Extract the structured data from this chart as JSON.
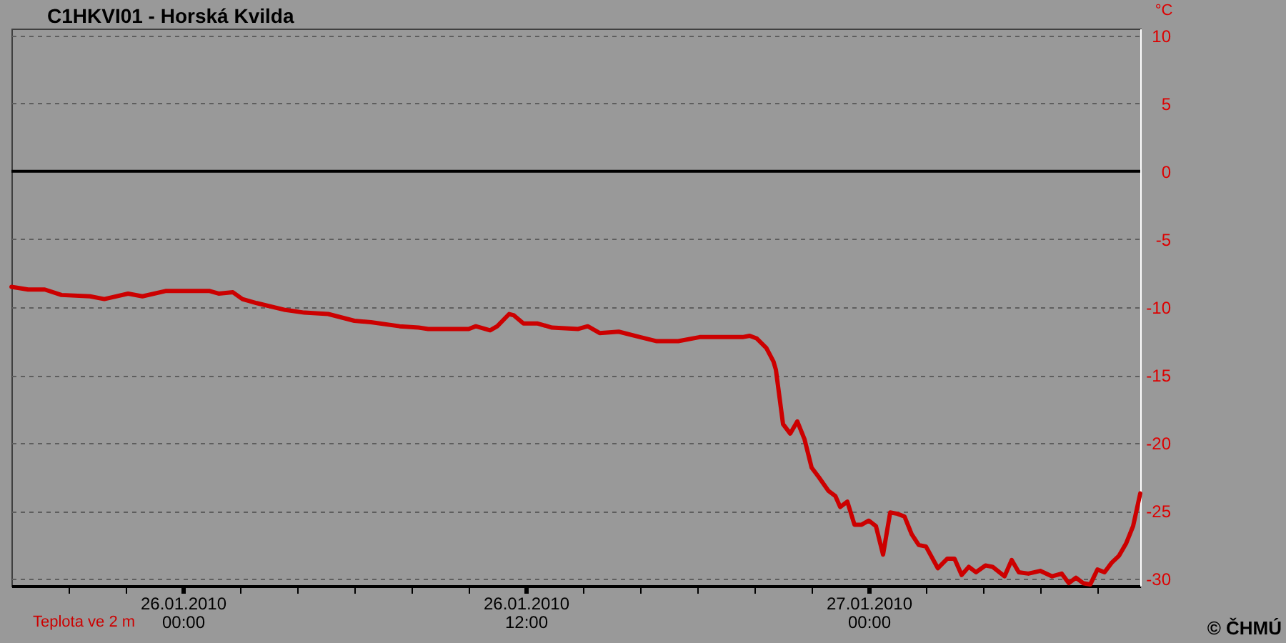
{
  "chart_data": {
    "type": "line",
    "title": "C1HKVI01 - Horská Kvilda",
    "ylabel": "°C",
    "x": [
      "2010-01-25T18:00",
      "2010-01-25T18:35",
      "2010-01-25T19:10",
      "2010-01-25T19:45",
      "2010-01-25T20:45",
      "2010-01-25T21:15",
      "2010-01-25T22:05",
      "2010-01-25T22:35",
      "2010-01-25T23:25",
      "2010-01-26T00:55",
      "2010-01-26T01:15",
      "2010-01-26T01:45",
      "2010-01-26T02:05",
      "2010-01-26T02:35",
      "2010-01-26T03:35",
      "2010-01-26T04:15",
      "2010-01-26T05:05",
      "2010-01-26T06:00",
      "2010-01-26T06:35",
      "2010-01-26T07:35",
      "2010-01-26T08:15",
      "2010-01-26T08:35",
      "2010-01-26T09:25",
      "2010-01-26T10:00",
      "2010-01-26T10:15",
      "2010-01-26T10:45",
      "2010-01-26T11:00",
      "2010-01-26T11:25",
      "2010-01-26T11:35",
      "2010-01-26T11:55",
      "2010-01-26T12:25",
      "2010-01-26T12:55",
      "2010-01-26T13:50",
      "2010-01-26T14:10",
      "2010-01-26T14:35",
      "2010-01-26T15:15",
      "2010-01-26T16:00",
      "2010-01-26T16:35",
      "2010-01-26T17:20",
      "2010-01-26T18:05",
      "2010-01-26T19:35",
      "2010-01-26T19:50",
      "2010-01-26T20:05",
      "2010-01-26T20:25",
      "2010-01-26T20:40",
      "2010-01-26T20:45",
      "2010-01-26T21:00",
      "2010-01-26T21:15",
      "2010-01-26T21:30",
      "2010-01-26T21:45",
      "2010-01-26T22:00",
      "2010-01-26T22:15",
      "2010-01-26T22:35",
      "2010-01-26T22:50",
      "2010-01-26T23:00",
      "2010-01-26T23:15",
      "2010-01-26T23:30",
      "2010-01-26T23:45",
      "2010-01-27T00:00",
      "2010-01-27T00:15",
      "2010-01-27T00:30",
      "2010-01-27T00:45",
      "2010-01-27T01:00",
      "2010-01-27T01:15",
      "2010-01-27T01:30",
      "2010-01-27T01:45",
      "2010-01-27T02:00",
      "2010-01-27T02:25",
      "2010-01-27T02:45",
      "2010-01-27T03:00",
      "2010-01-27T03:15",
      "2010-01-27T03:30",
      "2010-01-27T03:45",
      "2010-01-27T04:05",
      "2010-01-27T04:20",
      "2010-01-27T04:45",
      "2010-01-27T05:00",
      "2010-01-27T05:15",
      "2010-01-27T05:35",
      "2010-01-27T06:00",
      "2010-01-27T06:25",
      "2010-01-27T06:45",
      "2010-01-27T07:00",
      "2010-01-27T07:15",
      "2010-01-27T07:30",
      "2010-01-27T07:45",
      "2010-01-27T08:00",
      "2010-01-27T08:15",
      "2010-01-27T08:30",
      "2010-01-27T08:45",
      "2010-01-27T09:00",
      "2010-01-27T09:15",
      "2010-01-27T09:30"
    ],
    "series": [
      {
        "name": "Teplota ve 2 m",
        "color": "#cc0000",
        "values": [
          -8.5,
          -8.7,
          -8.7,
          -9.1,
          -9.2,
          -9.4,
          -9.0,
          -9.2,
          -8.8,
          -8.8,
          -9.0,
          -8.9,
          -9.4,
          -9.7,
          -10.2,
          -10.4,
          -10.5,
          -11.0,
          -11.1,
          -11.4,
          -11.5,
          -11.6,
          -11.6,
          -11.6,
          -11.4,
          -11.7,
          -11.4,
          -10.5,
          -10.6,
          -11.2,
          -11.2,
          -11.5,
          -11.6,
          -11.4,
          -11.9,
          -11.8,
          -12.2,
          -12.5,
          -12.5,
          -12.2,
          -12.2,
          -12.1,
          -12.3,
          -13.0,
          -14.0,
          -14.6,
          -18.6,
          -19.3,
          -18.4,
          -19.7,
          -21.8,
          -22.5,
          -23.5,
          -23.9,
          -24.7,
          -24.3,
          -26.0,
          -26.0,
          -25.7,
          -26.1,
          -28.2,
          -25.1,
          -25.2,
          -25.4,
          -26.7,
          -27.5,
          -27.6,
          -29.2,
          -28.5,
          -28.5,
          -29.7,
          -29.1,
          -29.5,
          -29.0,
          -29.1,
          -29.8,
          -28.6,
          -29.5,
          -29.6,
          -29.4,
          -29.8,
          -29.6,
          -30.3,
          -29.9,
          -30.3,
          -30.4,
          -29.3,
          -29.5,
          -28.8,
          -28.3,
          -27.4,
          -26.1,
          -23.7
        ]
      }
    ],
    "xlim": [
      "2010-01-25T18:00",
      "2010-01-27T09:30"
    ],
    "xticks": [
      {
        "value": "2010-01-25T20:00",
        "label": null
      },
      {
        "value": "2010-01-25T22:00",
        "label": null
      },
      {
        "value": "2010-01-26T00:00",
        "label": "26.01.2010\n00:00"
      },
      {
        "value": "2010-01-26T02:00",
        "label": null
      },
      {
        "value": "2010-01-26T04:00",
        "label": null
      },
      {
        "value": "2010-01-26T06:00",
        "label": null
      },
      {
        "value": "2010-01-26T08:00",
        "label": null
      },
      {
        "value": "2010-01-26T10:00",
        "label": null
      },
      {
        "value": "2010-01-26T12:00",
        "label": "26.01.2010\n12:00"
      },
      {
        "value": "2010-01-26T14:00",
        "label": null
      },
      {
        "value": "2010-01-26T16:00",
        "label": null
      },
      {
        "value": "2010-01-26T18:00",
        "label": null
      },
      {
        "value": "2010-01-26T20:00",
        "label": null
      },
      {
        "value": "2010-01-26T22:00",
        "label": null
      },
      {
        "value": "2010-01-27T00:00",
        "label": "27.01.2010\n00:00"
      },
      {
        "value": "2010-01-27T02:00",
        "label": null
      },
      {
        "value": "2010-01-27T04:00",
        "label": null
      },
      {
        "value": "2010-01-27T06:00",
        "label": null
      },
      {
        "value": "2010-01-27T08:00",
        "label": null
      }
    ],
    "ylim": [
      -30.5,
      10.5
    ],
    "yticks": [
      10,
      5,
      0,
      -5,
      -10,
      -15,
      -20,
      -25,
      -30
    ],
    "grid": "y",
    "legend": "bottom left",
    "ref_lines": [
      {
        "axis": "y",
        "value": 0,
        "color": "#000000",
        "line_style": "solid"
      }
    ],
    "annotations": [
      "© ČHMÚ"
    ]
  }
}
